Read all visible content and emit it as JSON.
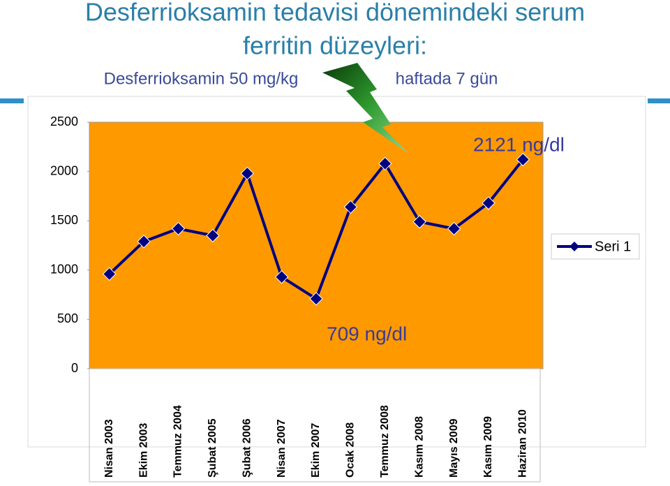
{
  "chart_data": {
    "type": "line",
    "title": "Desferrioksamin tedavisi dönemindeki serum ferritin düzeyleri:",
    "subtitle_left": "Desferrioksamin 50 mg/kg",
    "subtitle_right": "haftada 7 gün",
    "categories": [
      "Nisan 2003",
      "Ekim 2003",
      "Temmuz 2004",
      "Şubat 2005",
      "Şubat 2006",
      "Nisan 2007",
      "Ekim 2007",
      "Ocak 2008",
      "Temmuz 2008",
      "Kasım 2008",
      "Mayıs 2009",
      "Kasım 2009",
      "Haziran 2010"
    ],
    "series": [
      {
        "name": "Seri 1",
        "color": "#000080",
        "values": [
          960,
          1290,
          1420,
          1350,
          1980,
          930,
          709,
          1640,
          2080,
          1490,
          1420,
          1680,
          2121
        ]
      }
    ],
    "annotations": [
      "2121 ng/dl",
      "709 ng/dl"
    ],
    "ylim": [
      0,
      2500
    ],
    "yticks": [
      0,
      500,
      1000,
      1500,
      2000,
      2500
    ],
    "plot_color": "#ff9900",
    "legend": "right"
  }
}
